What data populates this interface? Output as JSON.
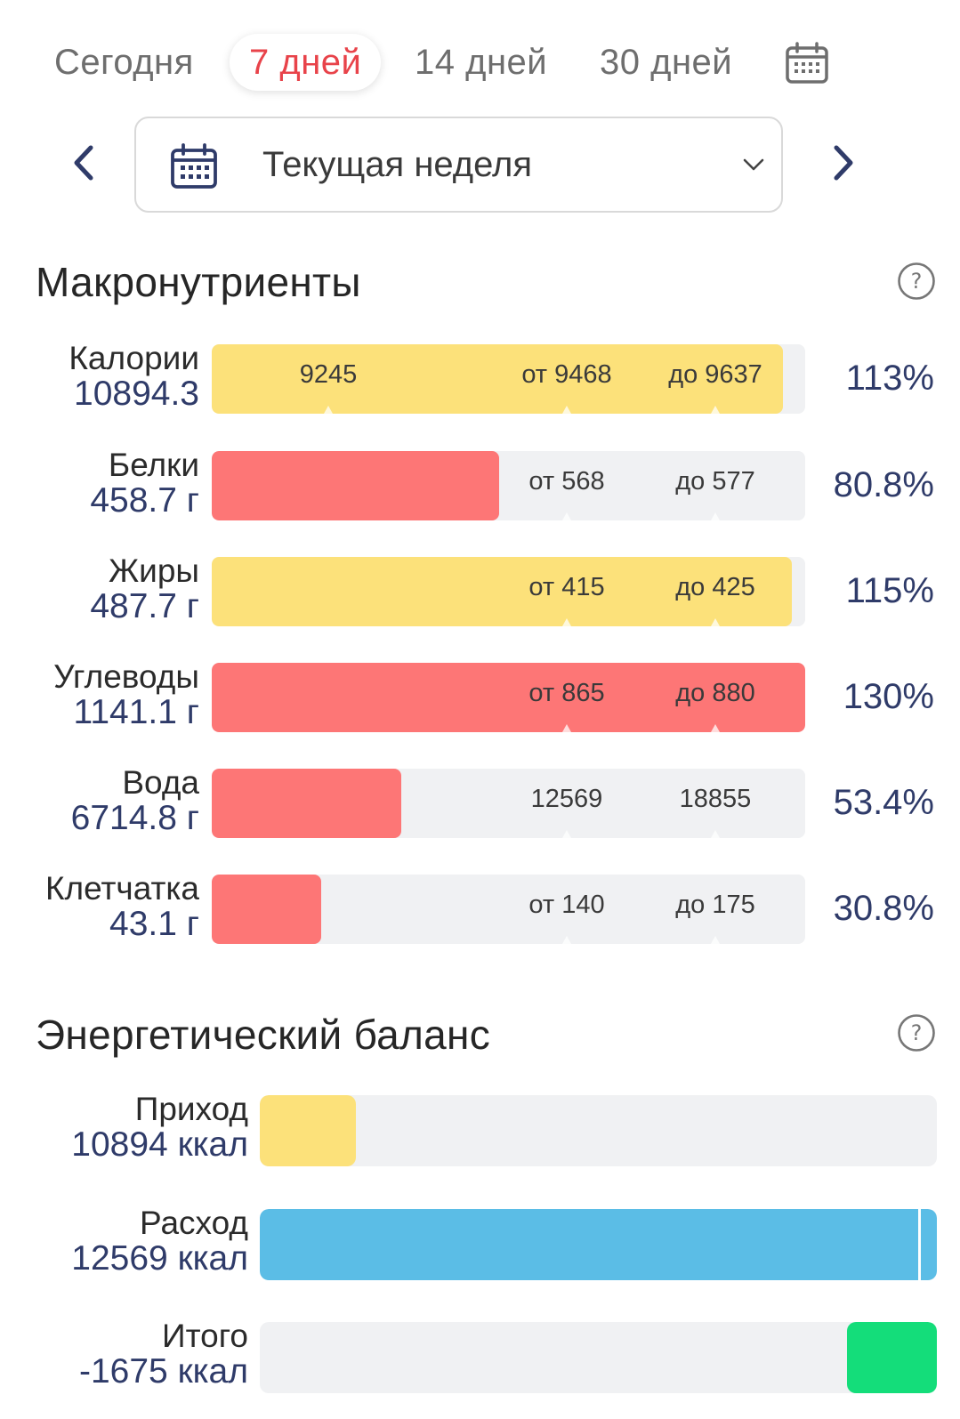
{
  "tabs": [
    {
      "label": "Сегодня",
      "active": false
    },
    {
      "label": "7 дней",
      "active": true
    },
    {
      "label": "14 дней",
      "active": false
    },
    {
      "label": "30 дней",
      "active": false
    }
  ],
  "period": {
    "label": "Текущая неделя"
  },
  "macros": {
    "title": "Макронутриенты",
    "rows": [
      {
        "name": "Калории",
        "value": "10894.3",
        "marker_a": "9245",
        "marker_b": "от 9468",
        "marker_c": "до 9637",
        "percent": "113%",
        "fill": 0.963,
        "color": "#fce17a"
      },
      {
        "name": "Белки",
        "value": "458.7 г",
        "marker_a": "",
        "marker_b": "от 568",
        "marker_c": "до 577",
        "percent": "80.8%",
        "fill": 0.485,
        "color": "#fd7676"
      },
      {
        "name": "Жиры",
        "value": "487.7 г",
        "marker_a": "",
        "marker_b": "от 415",
        "marker_c": "до 425",
        "percent": "115%",
        "fill": 0.977,
        "color": "#fce17a"
      },
      {
        "name": "Углеводы",
        "value": "1141.1 г",
        "marker_a": "",
        "marker_b": "от 865",
        "marker_c": "до 880",
        "percent": "130%",
        "fill": 1.0,
        "color": "#fd7676"
      },
      {
        "name": "Вода",
        "value": "6714.8 г",
        "marker_a": "",
        "marker_b": "12569",
        "marker_c": "18855",
        "percent": "53.4%",
        "fill": 0.32,
        "color": "#fd7676"
      },
      {
        "name": "Клетчатка",
        "value": "43.1 г",
        "marker_a": "",
        "marker_b": "от 140",
        "marker_c": "до 175",
        "percent": "30.8%",
        "fill": 0.184,
        "color": "#fd7676"
      }
    ]
  },
  "energy": {
    "title": "Энергетический баланс",
    "rows": [
      {
        "name": "Приход",
        "value": "10894 ккал",
        "fill": 0.142,
        "color": "#fce17a",
        "align": "left"
      },
      {
        "name": "Расход",
        "value": "12569 ккал",
        "fill": 1.0,
        "color": "#5bbde6",
        "align": "left"
      },
      {
        "name": "Итого",
        "value": "-1675 ккал",
        "fill": 0.133,
        "color": "#14dd7a",
        "align": "right"
      }
    ]
  },
  "icons": [
    "calendar-icon",
    "chevron-left-icon",
    "chevron-right-icon",
    "chevron-down-icon",
    "help-icon"
  ]
}
